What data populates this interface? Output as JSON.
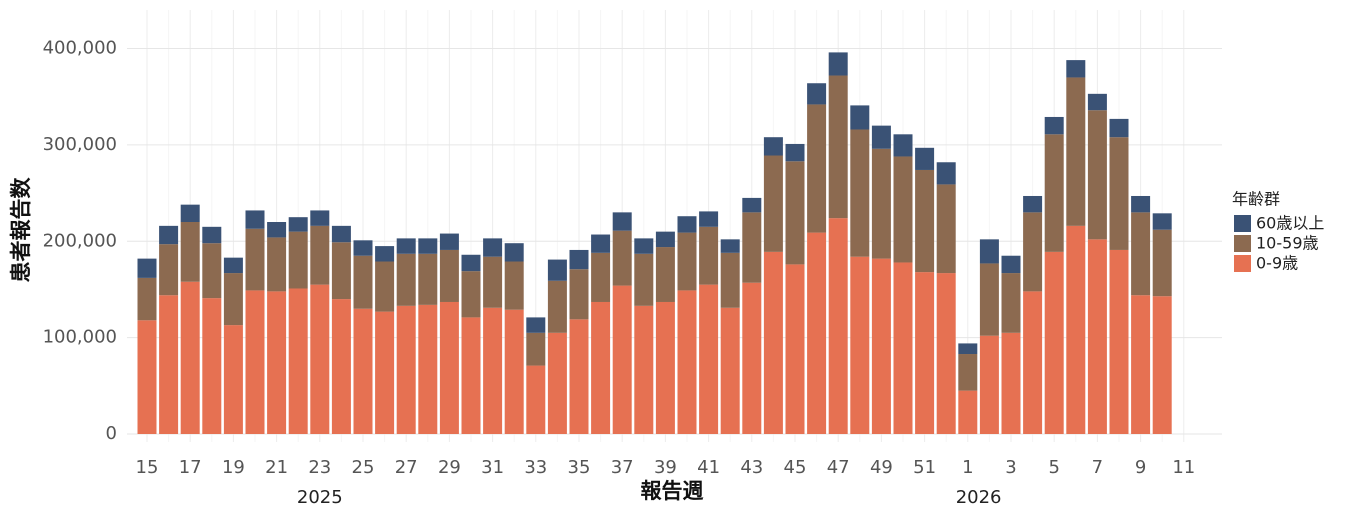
{
  "chart_data": {
    "type": "stacked_bar",
    "x_label": "報告週",
    "y_label": "患者報告数",
    "legend_title": "年齢群",
    "legend_position": "right",
    "grid": true,
    "categories": [
      "15",
      null,
      "17",
      null,
      "19",
      null,
      "21",
      null,
      "23",
      null,
      "25",
      null,
      "27",
      null,
      "29",
      null,
      "31",
      null,
      "33",
      null,
      "35",
      null,
      "37",
      null,
      "39",
      null,
      "41",
      null,
      "43",
      null,
      "45",
      null,
      "47",
      null,
      "49",
      null,
      "51",
      null,
      "1",
      null,
      "3",
      null,
      "5",
      null,
      "7",
      null,
      "9",
      null,
      "11"
    ],
    "x_groups": [
      "2025",
      "2026"
    ],
    "ylim": [
      0,
      440000
    ],
    "yticks": [
      0,
      {
        "value": 100000,
        "label": "100,000"
      },
      {
        "value": 200000,
        "label": "200,000"
      },
      {
        "value": 300000,
        "label": "300,000"
      },
      {
        "value": 400000,
        "label": "400,000"
      }
    ],
    "series": [
      {
        "name": "0-9歳",
        "color": "#e67152",
        "values": [
          118000,
          144000,
          158000,
          141000,
          113000,
          149000,
          148000,
          151000,
          155000,
          140000,
          130000,
          127000,
          133000,
          134000,
          137000,
          121000,
          131000,
          129000,
          71000,
          105000,
          119000,
          137000,
          154000,
          133000,
          137000,
          149000,
          155000,
          131000,
          157000,
          189000,
          176000,
          209000,
          224000,
          184000,
          182000,
          178000,
          168000,
          167000,
          45000,
          102000,
          105000,
          148000,
          189000,
          216000,
          202000,
          191000,
          144000,
          143000,
          null
        ]
      },
      {
        "name": "10-59歳",
        "color": "#8c6a50",
        "values": [
          44000,
          53000,
          62000,
          57000,
          54000,
          64000,
          56000,
          59000,
          61000,
          59000,
          55000,
          52000,
          54000,
          53000,
          54000,
          48000,
          53000,
          50000,
          34000,
          54000,
          52000,
          51000,
          57000,
          54000,
          57000,
          60000,
          60000,
          57000,
          73000,
          100000,
          107000,
          133000,
          148000,
          132000,
          114000,
          110000,
          106000,
          92000,
          38000,
          75000,
          62000,
          82000,
          122000,
          154000,
          134000,
          117000,
          86000,
          69000,
          null
        ]
      },
      {
        "name": "60歳以上",
        "color": "#3a5275",
        "values": [
          20000,
          19000,
          18000,
          17000,
          16000,
          19000,
          16000,
          15000,
          16000,
          17000,
          16000,
          16000,
          16000,
          16000,
          17000,
          17000,
          19000,
          19000,
          16000,
          22000,
          20000,
          19000,
          19000,
          16000,
          16000,
          17000,
          16000,
          14000,
          15000,
          19000,
          18000,
          22000,
          24000,
          25000,
          24000,
          23000,
          23000,
          23000,
          11000,
          25000,
          18000,
          17000,
          18000,
          18000,
          17000,
          19000,
          17000,
          17000,
          null
        ]
      }
    ]
  }
}
